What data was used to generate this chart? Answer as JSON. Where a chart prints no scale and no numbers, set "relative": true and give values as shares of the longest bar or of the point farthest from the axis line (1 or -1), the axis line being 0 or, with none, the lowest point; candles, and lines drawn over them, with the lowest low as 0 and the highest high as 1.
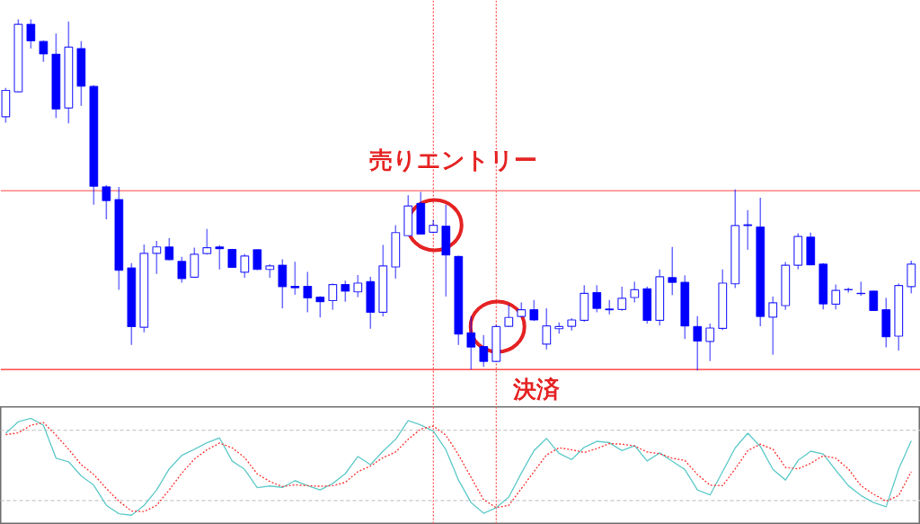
{
  "chart_data": [
    {
      "type": "candlestick",
      "relative": true,
      "color": "#0000ff",
      "categories": [
        null,
        null,
        null,
        null,
        null,
        null,
        null,
        null,
        null,
        null,
        null,
        null,
        null,
        null,
        null,
        null,
        null,
        null,
        null,
        null,
        null,
        null,
        null,
        null,
        null,
        null,
        null,
        null,
        null,
        null,
        null,
        null,
        null,
        null,
        null,
        null,
        null,
        null,
        null,
        null,
        null,
        null,
        null,
        null,
        null,
        null,
        null,
        null,
        null,
        null,
        null,
        null,
        null,
        null,
        null,
        null,
        null,
        null,
        null,
        null,
        null,
        null,
        null,
        null,
        null,
        null,
        null,
        null,
        null,
        null,
        null,
        null,
        null
      ],
      "ohlc": [
        [
          0.723,
          0.805,
          0.706,
          0.798
        ],
        [
          0.794,
          1.0,
          0.793,
          0.986
        ],
        [
          0.986,
          1.0,
          0.917,
          0.939
        ],
        [
          0.937,
          0.94,
          0.879,
          0.902
        ],
        [
          0.901,
          0.96,
          0.719,
          0.745
        ],
        [
          0.748,
          0.994,
          0.704,
          0.921
        ],
        [
          0.917,
          0.938,
          0.754,
          0.81
        ],
        [
          0.809,
          0.813,
          0.472,
          0.525
        ],
        [
          0.523,
          0.528,
          0.431,
          0.484
        ],
        [
          0.487,
          0.523,
          0.23,
          0.286
        ],
        [
          0.292,
          0.306,
          0.073,
          0.125
        ],
        [
          0.123,
          0.359,
          0.109,
          0.334
        ],
        [
          0.334,
          0.369,
          0.275,
          0.352
        ],
        [
          0.352,
          0.377,
          0.314,
          0.316
        ],
        [
          0.311,
          0.324,
          0.25,
          0.262
        ],
        [
          0.266,
          0.35,
          0.265,
          0.331
        ],
        [
          0.333,
          0.403,
          0.33,
          0.35
        ],
        [
          0.352,
          0.357,
          0.288,
          0.347
        ],
        [
          0.345,
          0.347,
          0.292,
          0.294
        ],
        [
          0.28,
          0.332,
          0.264,
          0.326
        ],
        [
          0.344,
          0.345,
          0.286,
          0.288
        ],
        [
          0.288,
          0.303,
          0.264,
          0.298
        ],
        [
          0.3,
          0.317,
          0.177,
          0.239
        ],
        [
          0.24,
          0.31,
          0.216,
          0.236
        ],
        [
          0.24,
          0.281,
          0.166,
          0.207
        ],
        [
          0.209,
          0.212,
          0.151,
          0.196
        ],
        [
          0.199,
          0.248,
          0.173,
          0.245
        ],
        [
          0.245,
          0.256,
          0.196,
          0.226
        ],
        [
          0.224,
          0.272,
          0.209,
          0.249
        ],
        [
          0.253,
          0.267,
          0.119,
          0.166
        ],
        [
          0.166,
          0.358,
          0.154,
          0.298
        ],
        [
          0.295,
          0.414,
          0.262,
          0.393
        ],
        [
          0.384,
          0.499,
          0.383,
          0.469
        ],
        [
          0.476,
          0.509,
          0.388,
          0.389
        ],
        [
          0.394,
          0.429,
          0.391,
          0.414
        ],
        [
          0.411,
          0.472,
          0.211,
          0.329
        ],
        [
          0.325,
          0.327,
          0.073,
          0.104
        ],
        [
          0.107,
          0.155,
          0.003,
          0.067
        ],
        [
          0.068,
          0.101,
          0.011,
          0.026
        ],
        [
          0.026,
          0.13,
          0.024,
          0.125
        ],
        [
          0.126,
          0.188,
          0.124,
          0.151
        ],
        [
          0.154,
          0.194,
          0.153,
          0.173
        ],
        [
          0.173,
          0.201,
          0.141,
          0.144
        ],
        [
          0.075,
          0.177,
          0.06,
          0.127
        ],
        [
          0.119,
          0.137,
          0.105,
          0.125
        ],
        [
          0.126,
          0.149,
          0.114,
          0.144
        ],
        [
          0.143,
          0.243,
          0.139,
          0.22
        ],
        [
          0.222,
          0.243,
          0.166,
          0.177
        ],
        [
          0.175,
          0.201,
          0.16,
          0.173
        ],
        [
          0.174,
          0.239,
          0.17,
          0.206
        ],
        [
          0.208,
          0.253,
          0.194,
          0.23
        ],
        [
          0.233,
          0.239,
          0.134,
          0.143
        ],
        [
          0.143,
          0.288,
          0.128,
          0.267
        ],
        [
          0.265,
          0.352,
          0.215,
          0.251
        ],
        [
          0.251,
          0.271,
          0.09,
          0.127
        ],
        [
          0.125,
          0.155,
          0.0,
          0.084
        ],
        [
          0.083,
          0.134,
          0.027,
          0.121
        ],
        [
          0.12,
          0.288,
          0.115,
          0.249
        ],
        [
          0.247,
          0.516,
          0.235,
          0.413
        ],
        [
          0.415,
          0.457,
          0.344,
          0.413
        ],
        [
          0.409,
          0.492,
          0.126,
          0.154
        ],
        [
          0.152,
          0.211,
          0.045,
          0.193
        ],
        [
          0.185,
          0.309,
          0.173,
          0.3
        ],
        [
          0.3,
          0.391,
          0.288,
          0.382
        ],
        [
          0.38,
          0.393,
          0.3,
          0.301
        ],
        [
          0.303,
          0.306,
          0.174,
          0.19
        ],
        [
          0.189,
          0.245,
          0.174,
          0.228
        ],
        [
          0.231,
          0.236,
          0.222,
          0.23
        ],
        [
          0.22,
          0.253,
          0.213,
          0.219
        ],
        [
          0.226,
          0.227,
          0.17,
          0.171
        ],
        [
          0.173,
          0.207,
          0.066,
          0.096
        ],
        [
          0.098,
          0.248,
          0.057,
          0.242
        ],
        [
          0.239,
          0.313,
          0.22,
          0.303
        ]
      ],
      "ref_lines": [
        {
          "axis": "y",
          "value": 0.512,
          "color": "#ff8080"
        },
        {
          "axis": "y",
          "value": 0.003,
          "color": "#ff2020"
        }
      ],
      "annotations": [
        "売りエントリー",
        "決済"
      ]
    },
    {
      "type": "line",
      "relative": true,
      "categories": [
        null,
        null,
        null,
        null,
        null,
        null,
        null,
        null,
        null,
        null,
        null,
        null,
        null,
        null,
        null,
        null,
        null,
        null,
        null,
        null,
        null,
        null,
        null,
        null,
        null,
        null,
        null,
        null,
        null,
        null,
        null,
        null,
        null,
        null,
        null,
        null,
        null,
        null,
        null,
        null,
        null,
        null,
        null,
        null,
        null,
        null,
        null,
        null,
        null,
        null,
        null,
        null,
        null,
        null,
        null,
        null,
        null,
        null,
        null,
        null,
        null,
        null,
        null,
        null,
        null,
        null,
        null,
        null,
        null,
        null,
        null,
        null,
        null
      ],
      "series": [
        {
          "color": "#66cccc",
          "line_style": "solid",
          "values": [
            0.859,
            0.968,
            1.0,
            0.934,
            0.622,
            0.588,
            0.455,
            0.367,
            0.176,
            0.096,
            0.082,
            0.176,
            0.322,
            0.521,
            0.649,
            0.707,
            0.769,
            0.814,
            0.596,
            0.516,
            0.343,
            0.359,
            0.346,
            0.41,
            0.362,
            0.322,
            0.383,
            0.476,
            0.638,
            0.561,
            0.689,
            0.801,
            0.979,
            0.936,
            0.88,
            0.702,
            0.415,
            0.202,
            0.101,
            0.154,
            0.255,
            0.481,
            0.694,
            0.809,
            0.668,
            0.609,
            0.726,
            0.782,
            0.769,
            0.694,
            0.742,
            0.596,
            0.673,
            0.593,
            0.516,
            0.322,
            0.274,
            0.495,
            0.721,
            0.859,
            0.734,
            0.516,
            0.415,
            0.601,
            0.689,
            0.662,
            0.508,
            0.362,
            0.269,
            0.202,
            0.162,
            0.521,
            0.787
          ]
        },
        {
          "color": "#ff4040",
          "line_style": "dotted",
          "values": [
            0.846,
            0.862,
            0.934,
            0.96,
            0.84,
            0.707,
            0.561,
            0.468,
            0.335,
            0.215,
            0.122,
            0.117,
            0.176,
            0.322,
            0.481,
            0.614,
            0.702,
            0.766,
            0.721,
            0.628,
            0.473,
            0.402,
            0.354,
            0.37,
            0.362,
            0.356,
            0.362,
            0.394,
            0.495,
            0.548,
            0.628,
            0.681,
            0.801,
            0.899,
            0.926,
            0.84,
            0.654,
            0.441,
            0.229,
            0.154,
            0.176,
            0.335,
            0.495,
            0.654,
            0.721,
            0.702,
            0.676,
            0.713,
            0.761,
            0.755,
            0.739,
            0.681,
            0.665,
            0.622,
            0.601,
            0.468,
            0.367,
            0.362,
            0.521,
            0.694,
            0.755,
            0.707,
            0.535,
            0.521,
            0.574,
            0.646,
            0.622,
            0.521,
            0.362,
            0.282,
            0.215,
            0.269,
            0.495
          ]
        }
      ],
      "ref_lines": [
        {
          "axis": "y",
          "value": 0.888,
          "color": "#c8c8c8",
          "line_style": "dashed"
        },
        {
          "axis": "y",
          "value": 0.221,
          "color": "#c8c8c8",
          "line_style": "dashed"
        }
      ]
    }
  ]
}
